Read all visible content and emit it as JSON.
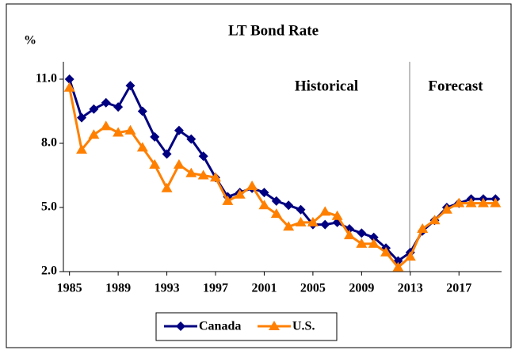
{
  "chart_data": {
    "type": "line",
    "title": "LT Bond Rate",
    "y_label": "%",
    "x": [
      1985,
      1986,
      1987,
      1988,
      1989,
      1990,
      1991,
      1992,
      1993,
      1994,
      1995,
      1996,
      1997,
      1998,
      1999,
      2000,
      2001,
      2002,
      2003,
      2004,
      2005,
      2006,
      2007,
      2008,
      2009,
      2010,
      2011,
      2012,
      2013,
      2014,
      2015,
      2016,
      2017,
      2018,
      2019,
      2020
    ],
    "series": [
      {
        "name": "Canada",
        "color": "#000080",
        "marker": "diamond",
        "values": [
          11.0,
          9.2,
          9.6,
          9.9,
          9.7,
          10.7,
          9.5,
          8.3,
          7.5,
          8.6,
          8.2,
          7.4,
          6.4,
          5.5,
          5.7,
          5.9,
          5.7,
          5.3,
          5.1,
          4.9,
          4.2,
          4.2,
          4.3,
          4.0,
          3.8,
          3.6,
          3.1,
          2.5,
          2.9,
          3.9,
          4.4,
          5.0,
          5.2,
          5.4,
          5.4,
          5.4
        ]
      },
      {
        "name": "U.S.",
        "color": "#ff8000",
        "marker": "triangle",
        "values": [
          10.6,
          7.7,
          8.4,
          8.8,
          8.5,
          8.6,
          7.8,
          7.0,
          5.9,
          7.0,
          6.6,
          6.5,
          6.4,
          5.3,
          5.6,
          6.0,
          5.1,
          4.7,
          4.1,
          4.3,
          4.3,
          4.8,
          4.6,
          3.7,
          3.3,
          3.3,
          2.9,
          2.2,
          2.7,
          4.0,
          4.4,
          4.9,
          5.2,
          5.2,
          5.2,
          5.2
        ]
      }
    ],
    "xlim": [
      1984.5,
      2020.5
    ],
    "xticks": [
      1985,
      1989,
      1993,
      1997,
      2001,
      2005,
      2009,
      2013,
      2017
    ],
    "ylim": [
      2,
      11
    ],
    "yticks": [
      {
        "value": 2,
        "label": "2.0"
      },
      {
        "value": 5,
        "label": "5.0"
      },
      {
        "value": 8,
        "label": "8.0"
      },
      {
        "value": 11,
        "label": "11.0"
      }
    ],
    "annotations": [
      "Historical",
      "Forecast"
    ]
  }
}
